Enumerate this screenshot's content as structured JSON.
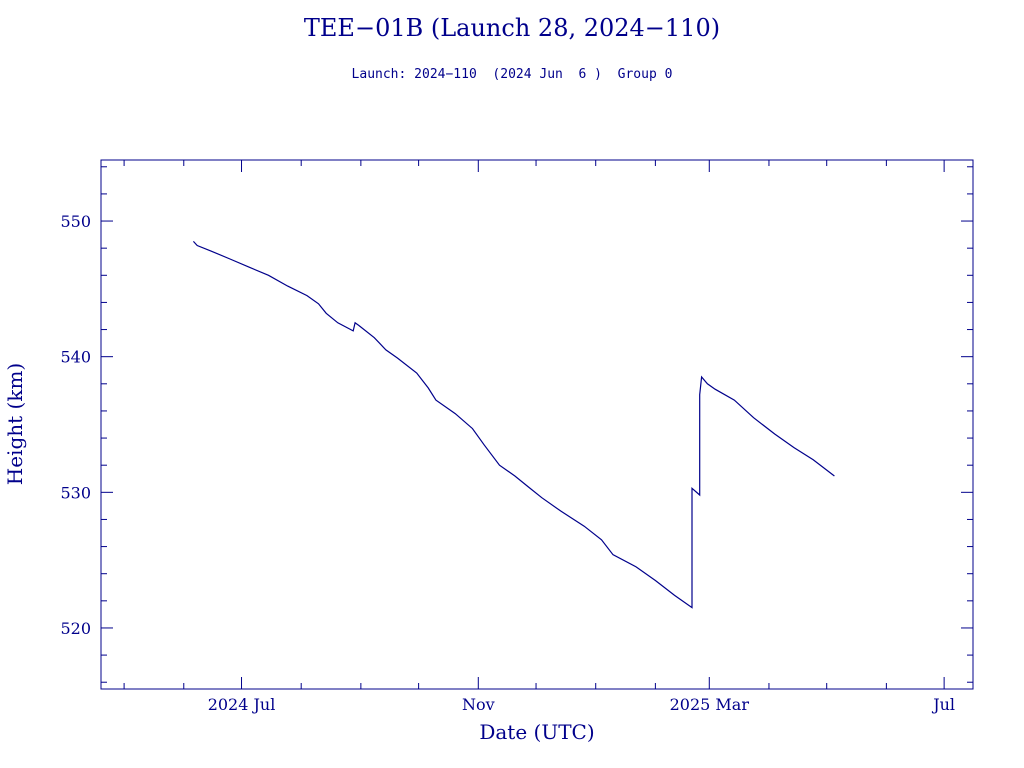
{
  "chart_data": {
    "type": "line",
    "title": "TEE−01B (Launch 28, 2024−110)",
    "subtitle": "Launch: 2024−110  (2024 Jun  6 )  Group 0",
    "xlabel": "Date (UTC)",
    "ylabel": "Height (km)",
    "xlim": [
      "2024-04-19",
      "2025-07-16"
    ],
    "ylim": [
      515.5,
      554.5
    ],
    "x_ticks": [
      {
        "date": "2024-07-01",
        "label": "2024 Jul"
      },
      {
        "date": "2024-11-01",
        "label": "Nov"
      },
      {
        "date": "2025-03-01",
        "label": "2025 Mar"
      },
      {
        "date": "2025-07-01",
        "label": "Jul"
      }
    ],
    "y_ticks": [
      520,
      530,
      540,
      550
    ],
    "grid": false,
    "series": [
      {
        "color": "#00008b",
        "points": [
          [
            "2024-06-06",
            548.5
          ],
          [
            "2024-06-08",
            548.2
          ],
          [
            "2024-06-15",
            547.8
          ],
          [
            "2024-06-25",
            547.2
          ],
          [
            "2024-07-05",
            546.6
          ],
          [
            "2024-07-15",
            546.0
          ],
          [
            "2024-07-25",
            545.2
          ],
          [
            "2024-08-04",
            544.5
          ],
          [
            "2024-08-10",
            543.9
          ],
          [
            "2024-08-14",
            543.2
          ],
          [
            "2024-08-20",
            542.5
          ],
          [
            "2024-08-28",
            541.9
          ],
          [
            "2024-08-29",
            542.5
          ],
          [
            "2024-08-31",
            542.3
          ],
          [
            "2024-09-08",
            541.4
          ],
          [
            "2024-09-14",
            540.5
          ],
          [
            "2024-09-20",
            539.9
          ],
          [
            "2024-09-30",
            538.8
          ],
          [
            "2024-10-06",
            537.7
          ],
          [
            "2024-10-10",
            536.8
          ],
          [
            "2024-10-20",
            535.8
          ],
          [
            "2024-10-29",
            534.7
          ],
          [
            "2024-11-04",
            533.5
          ],
          [
            "2024-11-12",
            532.0
          ],
          [
            "2024-11-20",
            531.2
          ],
          [
            "2024-11-27",
            530.4
          ],
          [
            "2024-12-04",
            529.6
          ],
          [
            "2024-12-14",
            528.6
          ],
          [
            "2024-12-26",
            527.5
          ],
          [
            "2025-01-04",
            526.5
          ],
          [
            "2025-01-10",
            525.4
          ],
          [
            "2025-01-22",
            524.5
          ],
          [
            "2025-02-01",
            523.5
          ],
          [
            "2025-02-11",
            522.4
          ],
          [
            "2025-02-20",
            521.5
          ],
          [
            "2025-02-20",
            530.3
          ],
          [
            "2025-02-24",
            529.8
          ],
          [
            "2025-02-24",
            537.2
          ],
          [
            "2025-02-25",
            538.5
          ],
          [
            "2025-02-28",
            538.0
          ],
          [
            "2025-03-04",
            537.6
          ],
          [
            "2025-03-14",
            536.8
          ],
          [
            "2025-03-24",
            535.5
          ],
          [
            "2025-04-04",
            534.3
          ],
          [
            "2025-04-14",
            533.3
          ],
          [
            "2025-04-24",
            532.4
          ],
          [
            "2025-05-05",
            531.2
          ]
        ]
      }
    ]
  }
}
